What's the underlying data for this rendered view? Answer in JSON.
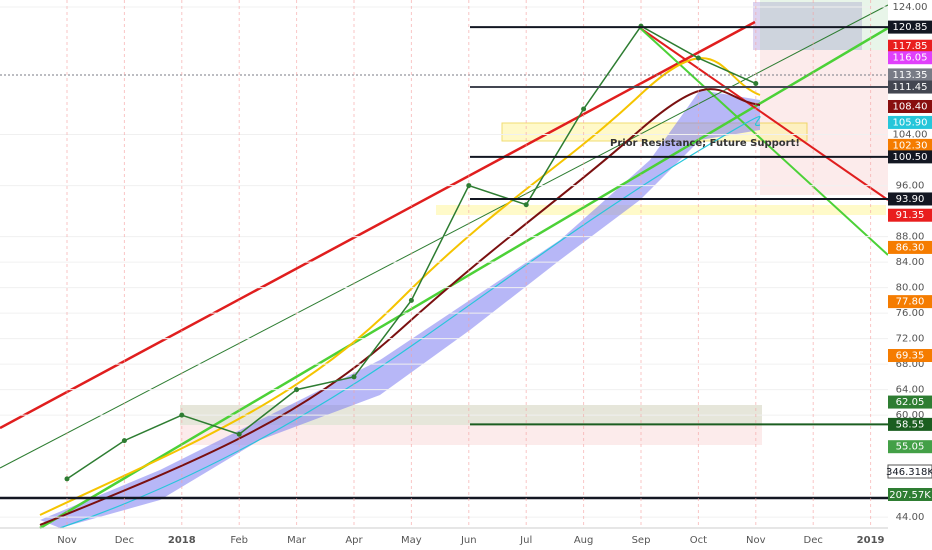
{
  "chart_data": {
    "type": "line",
    "categories": [
      "Nov",
      "Dec",
      "2018",
      "Feb",
      "Mar",
      "Apr",
      "May",
      "Jun",
      "Jul",
      "Aug",
      "Sep",
      "Oct",
      "Nov",
      "Dec",
      "2019"
    ],
    "values": [
      50,
      56,
      60,
      57,
      64,
      66,
      78,
      96,
      93,
      108,
      121,
      116,
      112,
      null,
      null
    ],
    "color": "#2e7d32",
    "ylim": [
      42.3,
      125.1
    ],
    "yticks": [
      {
        "value": 124,
        "label": "124.00"
      },
      {
        "value": 104,
        "label": "104.00"
      },
      {
        "value": 96,
        "label": "96.00"
      },
      {
        "value": 88,
        "label": "88.00"
      },
      {
        "value": 84,
        "label": "84.00"
      },
      {
        "value": 80,
        "label": "80.00"
      },
      {
        "value": 76,
        "label": "76.00"
      },
      {
        "value": 72,
        "label": "72.00"
      },
      {
        "value": 68,
        "label": "68.00"
      },
      {
        "value": 64,
        "label": "64.00"
      },
      {
        "value": 60,
        "label": "60.00"
      },
      {
        "value": 44,
        "label": "44.00"
      }
    ],
    "levels": [
      {
        "value": 120.85,
        "label": "120.85",
        "color": "#131722",
        "line": true
      },
      {
        "value": 117.85,
        "label": "117.85",
        "color": "#e91e1e",
        "line": false
      },
      {
        "value": 116.05,
        "label": "116.05",
        "color": "#e040fb",
        "line": false
      },
      {
        "value": 113.35,
        "label": "113.35",
        "color": "#787b86",
        "line": false
      },
      {
        "value": 111.45,
        "label": "111.45",
        "color": "#434651",
        "line": true
      },
      {
        "value": 108.4,
        "label": "108.40",
        "color": "#880e0e",
        "line": false
      },
      {
        "value": 105.9,
        "label": "105.90",
        "color": "#26c6da",
        "line": false
      },
      {
        "value": 102.3,
        "label": "102.30",
        "color": "#f57c00",
        "line": false
      },
      {
        "value": 100.5,
        "label": "100.50",
        "color": "#131722",
        "line": true
      },
      {
        "value": 93.9,
        "label": "93.90",
        "color": "#131722",
        "line": true
      },
      {
        "value": 91.35,
        "label": "91.35",
        "color": "#e91e1e",
        "line": false
      },
      {
        "value": 86.3,
        "label": "86.30",
        "color": "#f57c00",
        "line": false
      },
      {
        "value": 77.8,
        "label": "77.80",
        "color": "#f57c00",
        "line": false
      },
      {
        "value": 69.35,
        "label": "69.35",
        "color": "#f57c00",
        "line": false
      },
      {
        "value": 62.05,
        "label": "62.05",
        "color": "#2e7d32",
        "line": false
      },
      {
        "value": 58.55,
        "label": "58.55",
        "color": "#1b5e20",
        "line": true
      },
      {
        "value": 55.05,
        "label": "55.05",
        "color": "#43a047",
        "line": false
      }
    ],
    "volume_labels": [
      "346.318K",
      "207.57K"
    ],
    "annotations": [
      "Prior Resistance; Future Support!"
    ]
  }
}
